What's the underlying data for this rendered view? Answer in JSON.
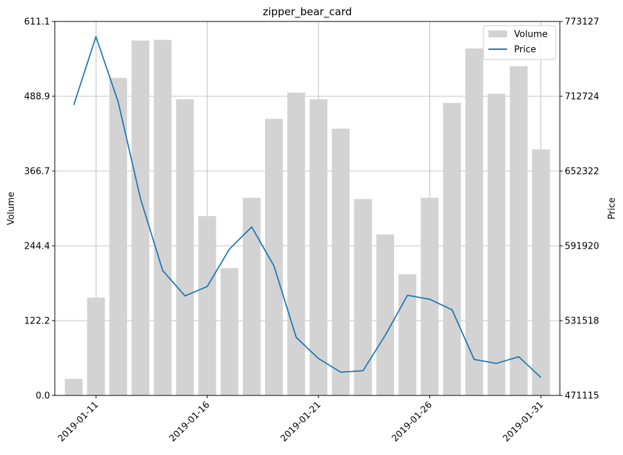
{
  "chart_data": {
    "type": "bar+line",
    "title": "zipper_bear_card",
    "xlabel": "",
    "ylabel": "Volume",
    "ylabel_right": "Price",
    "dates": [
      "2019-01-10",
      "2019-01-11",
      "2019-01-12",
      "2019-01-13",
      "2019-01-14",
      "2019-01-15",
      "2019-01-16",
      "2019-01-17",
      "2019-01-18",
      "2019-01-19",
      "2019-01-20",
      "2019-01-21",
      "2019-01-22",
      "2019-01-23",
      "2019-01-24",
      "2019-01-25",
      "2019-01-26",
      "2019-01-27",
      "2019-01-28",
      "2019-01-29",
      "2019-01-30",
      "2019-01-31"
    ],
    "x_ticks": [
      "2019-01-11",
      "2019-01-16",
      "2019-01-21",
      "2019-01-26",
      "2019-01-31"
    ],
    "y_ticks_left": [
      "0.0",
      "122.2",
      "244.4",
      "366.7",
      "488.9",
      "611.1"
    ],
    "y_ticks_right": [
      "471115",
      "531518",
      "591920",
      "652322",
      "712724",
      "773127"
    ],
    "ylim_left": [
      0,
      611.1
    ],
    "ylim_right": [
      471115,
      773127
    ],
    "grid": true,
    "legend_position": "top-right",
    "series": [
      {
        "name": "Volume",
        "type": "bar",
        "color": "#d3d3d3",
        "axis": "left",
        "values": [
          27,
          160,
          519,
          580,
          581,
          484,
          293,
          208,
          323,
          452,
          495,
          484,
          436,
          321,
          263,
          198,
          323,
          478,
          567,
          493,
          538,
          402
        ]
      },
      {
        "name": "Price",
        "type": "line",
        "color": "#1f77b4",
        "axis": "right",
        "values": [
          705700,
          760900,
          708100,
          630000,
          572000,
          551500,
          559100,
          589400,
          607200,
          575700,
          518000,
          501000,
          489900,
          491100,
          519600,
          552000,
          548800,
          540300,
          500200,
          497000,
          502400,
          485600
        ]
      }
    ]
  }
}
